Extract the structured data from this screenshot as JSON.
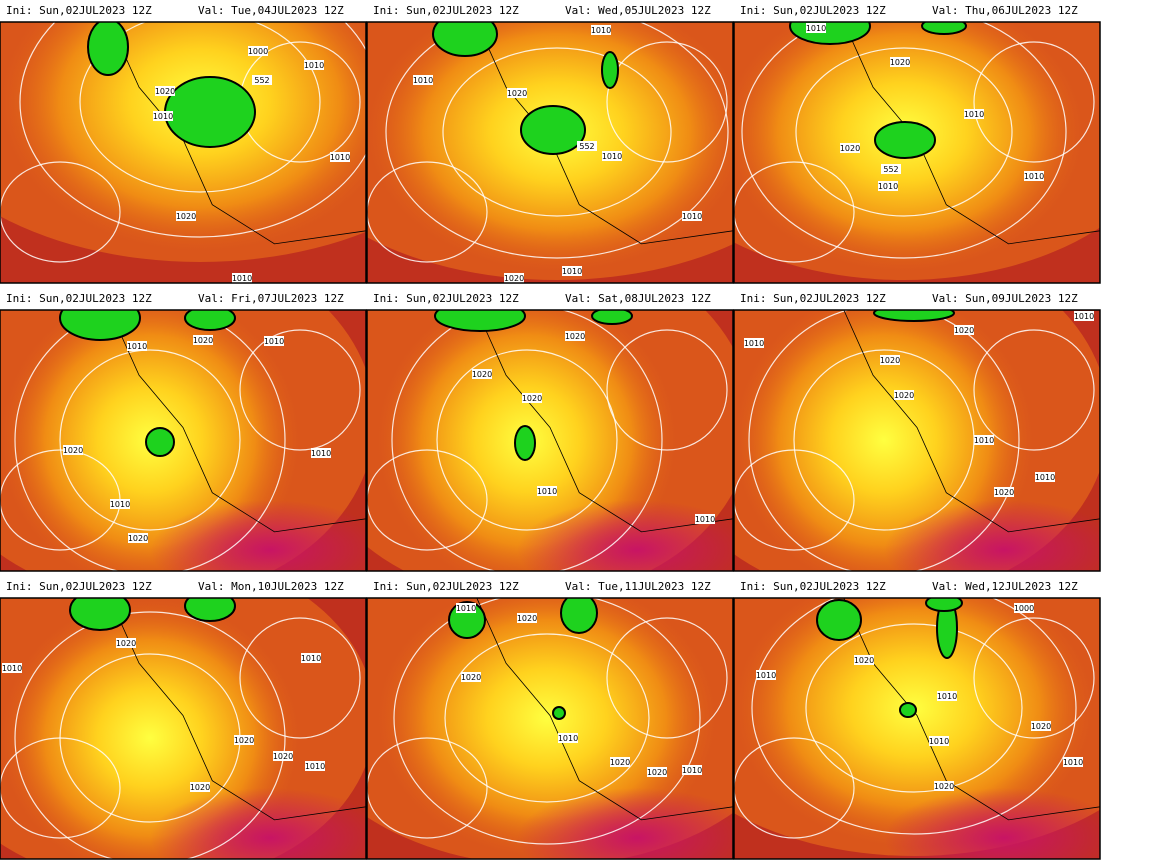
{
  "panels": [
    {
      "ini": "Ini:  Sun,02JUL2023 12Z",
      "val": "Val:  Tue,04JUL2023 12Z",
      "contour_labels": [
        "1000",
        "552",
        "1020",
        "1010",
        "1010",
        "1010",
        "1020",
        "1010"
      ]
    },
    {
      "ini": "Ini:  Sun,02JUL2023 12Z",
      "val": "Val:  Wed,05JUL2023 12Z",
      "contour_labels": [
        "1010",
        "1010",
        "1020",
        "552",
        "1010",
        "1010",
        "1020",
        "1010"
      ]
    },
    {
      "ini": "Ini:  Sun,02JUL2023 12Z",
      "val": "Val:  Thu,06JUL2023 12Z",
      "contour_labels": [
        "1010",
        "1020",
        "1010",
        "1020",
        "552",
        "1010",
        "1010"
      ]
    },
    {
      "ini": "Ini:  Sun,02JUL2023 12Z",
      "val": "Val:  Fri,07JUL2023 12Z",
      "contour_labels": [
        "1010",
        "1020",
        "1010",
        "1020",
        "1010",
        "1010",
        "1020"
      ]
    },
    {
      "ini": "Ini:  Sun,02JUL2023 12Z",
      "val": "Val:  Sat,08JUL2023 12Z",
      "contour_labels": [
        "1020",
        "1020",
        "1020",
        "1010",
        "1010"
      ]
    },
    {
      "ini": "Ini:  Sun,02JUL2023 12Z",
      "val": "Val:  Sun,09JUL2023 12Z",
      "contour_labels": [
        "1010",
        "1010",
        "1020",
        "1020",
        "1010",
        "1010",
        "1020",
        "1020"
      ]
    },
    {
      "ini": "Ini:  Sun,02JUL2023 12Z",
      "val": "Val:  Mon,10JUL2023 12Z",
      "contour_labels": [
        "1020",
        "1010",
        "1010",
        "1020",
        "1020",
        "1010",
        "1020"
      ]
    },
    {
      "ini": "Ini:  Sun,02JUL2023 12Z",
      "val": "Val:  Tue,11JUL2023 12Z",
      "contour_labels": [
        "1010",
        "1020",
        "1020",
        "1010",
        "1020",
        "1020",
        "1010"
      ]
    },
    {
      "ini": "Ini:  Sun,02JUL2023 12Z",
      "val": "Val:  Wed,12JUL2023 12Z",
      "contour_labels": [
        "1000",
        "1020",
        "1010",
        "1010",
        "1010",
        "1020",
        "1020",
        "1010"
      ]
    }
  ]
}
